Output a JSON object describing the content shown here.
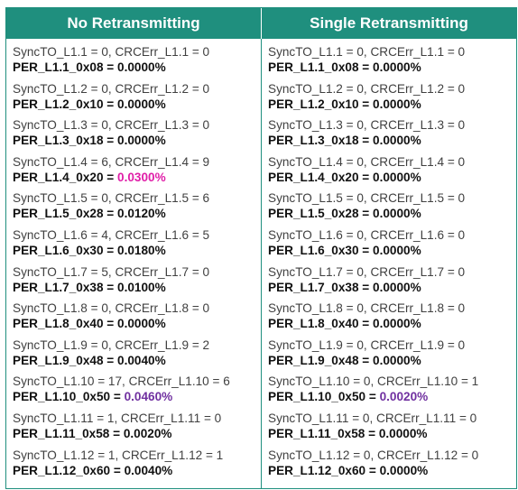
{
  "headers": {
    "left": "No Retransmitting",
    "right": "Single Retransmitting"
  },
  "colors": {
    "header_bg": "#1f8f7e",
    "highlight_pink": "#e01ea8",
    "highlight_purple": "#7030a0"
  },
  "left": [
    {
      "line1": "SyncTO_L1.1 = 0, CRCErr_L1.1 = 0",
      "label": "PER_L1.1_0x08 = ",
      "value": "0.0000%",
      "style": "normal"
    },
    {
      "line1": "SyncTO_L1.2 = 0, CRCErr_L1.2 = 0",
      "label": "PER_L1.2_0x10 = ",
      "value": "0.0000%",
      "style": "normal"
    },
    {
      "line1": "SyncTO_L1.3 = 0, CRCErr_L1.3 = 0",
      "label": "PER_L1.3_0x18 = ",
      "value": "0.0000%",
      "style": "normal"
    },
    {
      "line1": "SyncTO_L1.4 = 6, CRCErr_L1.4 = 9",
      "label": "PER_L1.4_0x20 = ",
      "value": "0.0300%",
      "style": "red"
    },
    {
      "line1": "SyncTO_L1.5 = 0, CRCErr_L1.5 = 6",
      "label": "PER_L1.5_0x28 = ",
      "value": "0.0120%",
      "style": "normal"
    },
    {
      "line1": "SyncTO_L1.6 = 4, CRCErr_L1.6 = 5",
      "label": "PER_L1.6_0x30 = ",
      "value": "0.0180%",
      "style": "normal"
    },
    {
      "line1": "SyncTO_L1.7 = 5, CRCErr_L1.7 = 0",
      "label": "PER_L1.7_0x38 = ",
      "value": "0.0100%",
      "style": "normal"
    },
    {
      "line1": "SyncTO_L1.8 = 0, CRCErr_L1.8 = 0",
      "label": "PER_L1.8_0x40 = ",
      "value": "0.0000%",
      "style": "normal"
    },
    {
      "line1": "SyncTO_L1.9 = 0, CRCErr_L1.9 = 2",
      "label": "PER_L1.9_0x48 = ",
      "value": "0.0040%",
      "style": "normal"
    },
    {
      "line1": "SyncTO_L1.10 = 17, CRCErr_L1.10 = 6",
      "label": "PER_L1.10_0x50 = ",
      "value": "0.0460%",
      "style": "purple"
    },
    {
      "line1": "SyncTO_L1.11 = 1, CRCErr_L1.11 = 0",
      "label": "PER_L1.11_0x58 = ",
      "value": "0.0020%",
      "style": "normal"
    },
    {
      "line1": "SyncTO_L1.12 = 1, CRCErr_L1.12 = 1",
      "label": "PER_L1.12_0x60 = ",
      "value": "0.0040%",
      "style": "normal"
    }
  ],
  "right": [
    {
      "line1": "SyncTO_L1.1 = 0, CRCErr_L1.1 = 0",
      "label": "PER_L1.1_0x08 = ",
      "value": "0.0000%",
      "style": "normal"
    },
    {
      "line1": "SyncTO_L1.2 = 0, CRCErr_L1.2 = 0",
      "label": "PER_L1.2_0x10 = ",
      "value": "0.0000%",
      "style": "normal"
    },
    {
      "line1": "SyncTO_L1.3 = 0, CRCErr_L1.3 = 0",
      "label": "PER_L1.3_0x18 = ",
      "value": "0.0000%",
      "style": "normal"
    },
    {
      "line1": "SyncTO_L1.4 = 0, CRCErr_L1.4 = 0",
      "label": "PER_L1.4_0x20 = ",
      "value": "0.0000%",
      "style": "normal"
    },
    {
      "line1": "SyncTO_L1.5 = 0, CRCErr_L1.5 = 0",
      "label": "PER_L1.5_0x28 = ",
      "value": "0.0000%",
      "style": "normal"
    },
    {
      "line1": "SyncTO_L1.6 = 0, CRCErr_L1.6 = 0",
      "label": "PER_L1.6_0x30 = ",
      "value": "0.0000%",
      "style": "normal"
    },
    {
      "line1": "SyncTO_L1.7 = 0, CRCErr_L1.7 = 0",
      "label": "PER_L1.7_0x38 = ",
      "value": "0.0000%",
      "style": "normal"
    },
    {
      "line1": "SyncTO_L1.8 = 0, CRCErr_L1.8 = 0",
      "label": "PER_L1.8_0x40 = ",
      "value": "0.0000%",
      "style": "normal"
    },
    {
      "line1": "SyncTO_L1.9 = 0, CRCErr_L1.9 = 0",
      "label": "PER_L1.9_0x48 = ",
      "value": "0.0000%",
      "style": "normal"
    },
    {
      "line1": "SyncTO_L1.10 = 0, CRCErr_L1.10 = 1",
      "label": "PER_L1.10_0x50 = ",
      "value": "0.0020%",
      "style": "purple"
    },
    {
      "line1": "SyncTO_L1.11 = 0, CRCErr_L1.11 = 0",
      "label": "PER_L1.11_0x58 = ",
      "value": "0.0000%",
      "style": "normal"
    },
    {
      "line1": "SyncTO_L1.12 = 0, CRCErr_L1.12 = 0",
      "label": "PER_L1.12_0x60 = ",
      "value": "0.0000%",
      "style": "normal"
    }
  ]
}
